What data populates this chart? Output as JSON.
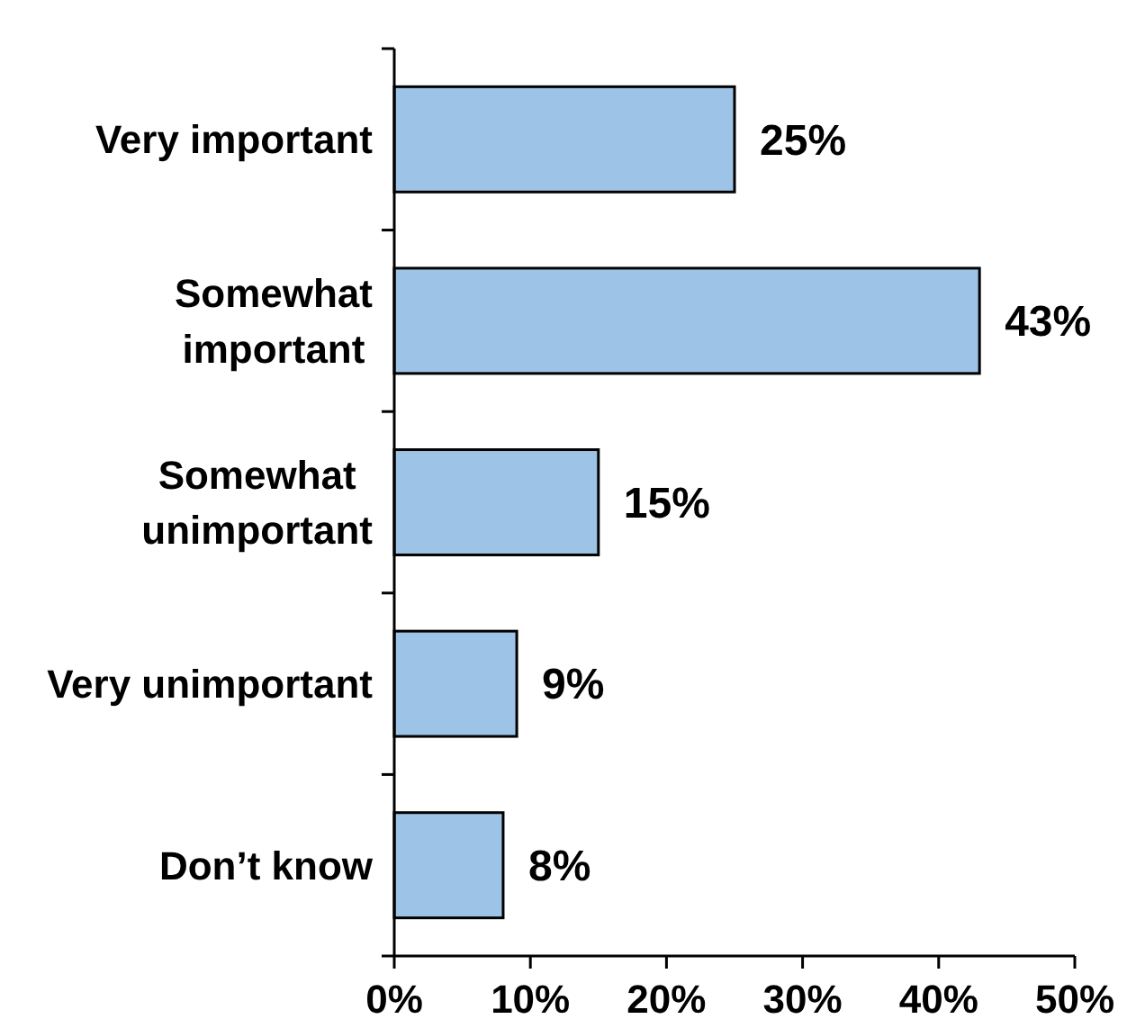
{
  "chart_data": {
    "type": "bar",
    "orientation": "horizontal",
    "categories": [
      "Very important",
      "Somewhat important",
      "Somewhat unimportant",
      "Very unimportant",
      "Don’t know"
    ],
    "values": [
      25,
      43,
      15,
      9,
      8
    ],
    "color": "#9dc3e6",
    "value_labels": [
      "25%",
      "43%",
      "15%",
      "9%",
      "8%"
    ],
    "xlim": [
      0,
      50
    ],
    "xticks": [
      {
        "value": 0,
        "label": "0%"
      },
      {
        "value": 10,
        "label": "10%"
      },
      {
        "value": 20,
        "label": "20%"
      },
      {
        "value": 30,
        "label": "30%"
      },
      {
        "value": 40,
        "label": "40%"
      },
      {
        "value": 50,
        "label": "50%"
      }
    ]
  }
}
